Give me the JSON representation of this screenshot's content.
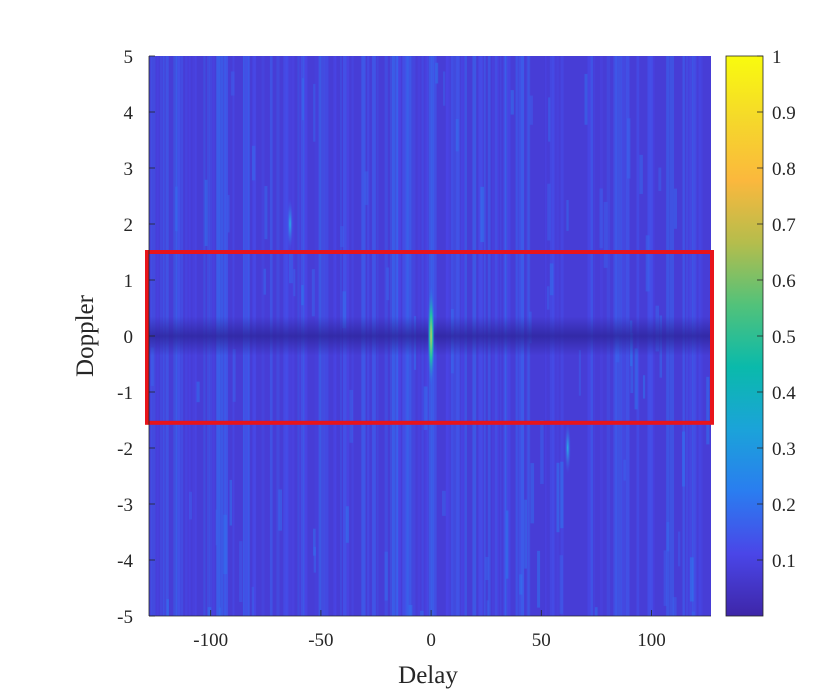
{
  "chart_data": {
    "type": "heatmap",
    "title": "",
    "xlabel": "Delay",
    "ylabel": "Doppler",
    "xlim": [
      -128,
      127
    ],
    "ylim": [
      -5,
      5
    ],
    "x_ticks": [
      -100,
      -50,
      0,
      50,
      100
    ],
    "x_tick_labels": [
      "-100",
      "-50",
      "0",
      "50",
      "100"
    ],
    "y_ticks": [
      -5,
      -4,
      -3,
      -2,
      -1,
      0,
      1,
      2,
      3,
      4,
      5
    ],
    "y_tick_labels": [
      "-5",
      "-4",
      "-3",
      "-2",
      "-1",
      "0",
      "1",
      "2",
      "3",
      "4",
      "5"
    ],
    "colorbar": {
      "colormap": "parula",
      "range": [
        0,
        1
      ],
      "ticks": [
        0.1,
        0.2,
        0.3,
        0.4,
        0.5,
        0.6,
        0.7,
        0.8,
        0.9,
        1
      ],
      "tick_labels": [
        "0.1",
        "0.2",
        "0.3",
        "0.4",
        "0.5",
        "0.6",
        "0.7",
        "0.8",
        "0.9",
        "1"
      ],
      "colors": [
        "#3e26a8",
        "#4a46e8",
        "#2a7df0",
        "#1ba3d9",
        "#0abaab",
        "#52c27a",
        "#b5bd4c",
        "#fbb83d",
        "#f5d92a",
        "#f9fb0e"
      ]
    },
    "background_level": 0.08,
    "features": [
      {
        "name": "main-peak",
        "delay": 0,
        "doppler": 0,
        "value": 0.55,
        "doppler_extent": [
          -0.9,
          0.9
        ]
      },
      {
        "name": "side-lobe",
        "delay": -64,
        "doppler": 2,
        "value": 0.22
      },
      {
        "name": "side-lobe",
        "delay": 62,
        "doppler": -2,
        "value": 0.22
      }
    ],
    "highlight_box": {
      "x_range": [
        -128,
        127
      ],
      "y_range": [
        -1.55,
        1.5
      ],
      "color": "#e8141b"
    },
    "grid": false
  }
}
